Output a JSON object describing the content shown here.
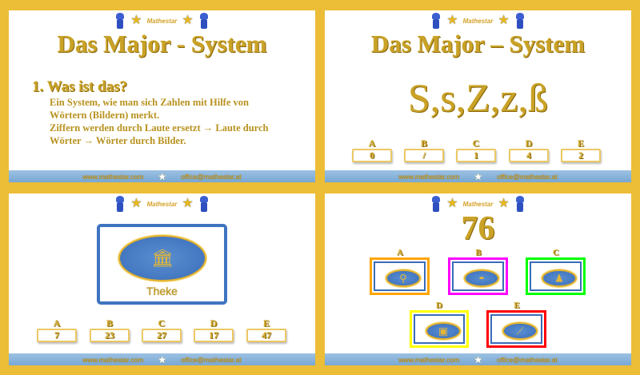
{
  "brand": {
    "logo_text": "Mathestar",
    "website": "www.mathestar.com",
    "email": "office@mathestar.at"
  },
  "colors": {
    "background": "#ecbd36",
    "gold_text": "#c9a227",
    "footer": "#7fadd6",
    "card_border": "#3a6db8"
  },
  "slide1": {
    "title": "Das Major - System",
    "heading": "1. Was ist das?",
    "lines": [
      "Ein System, wie man sich Zahlen mit Hilfe von",
      "Wörtern (Bildern) merkt.",
      "Ziffern werden durch Laute ersetzt → Laute durch",
      "Wörter → Wörter durch Bilder."
    ]
  },
  "slide2": {
    "title": "Das Major – System",
    "letters": "S,s,Z,z,ß",
    "options": [
      {
        "label": "A",
        "value": "0"
      },
      {
        "label": "B",
        "value": "/"
      },
      {
        "label": "C",
        "value": "1"
      },
      {
        "label": "D",
        "value": "4"
      },
      {
        "label": "E",
        "value": "2"
      }
    ]
  },
  "slide3": {
    "picture_icon": "counter-bar-icon",
    "word": "Theke",
    "options": [
      {
        "label": "A",
        "value": "7"
      },
      {
        "label": "B",
        "value": "23"
      },
      {
        "label": "C",
        "value": "27"
      },
      {
        "label": "D",
        "value": "17"
      },
      {
        "label": "E",
        "value": "47"
      }
    ]
  },
  "slide4": {
    "number": "76",
    "options": [
      {
        "label": "A",
        "icon": "fountain-icon",
        "color": "#ffa500"
      },
      {
        "label": "B",
        "icon": "cap-icon",
        "color": "#ff00ff"
      },
      {
        "label": "C",
        "icon": "figure-icon",
        "color": "#00ff00"
      },
      {
        "label": "D",
        "icon": "backpack-icon",
        "color": "#ffff00"
      },
      {
        "label": "E",
        "icon": "bat-icon",
        "color": "#ff0000"
      }
    ]
  }
}
